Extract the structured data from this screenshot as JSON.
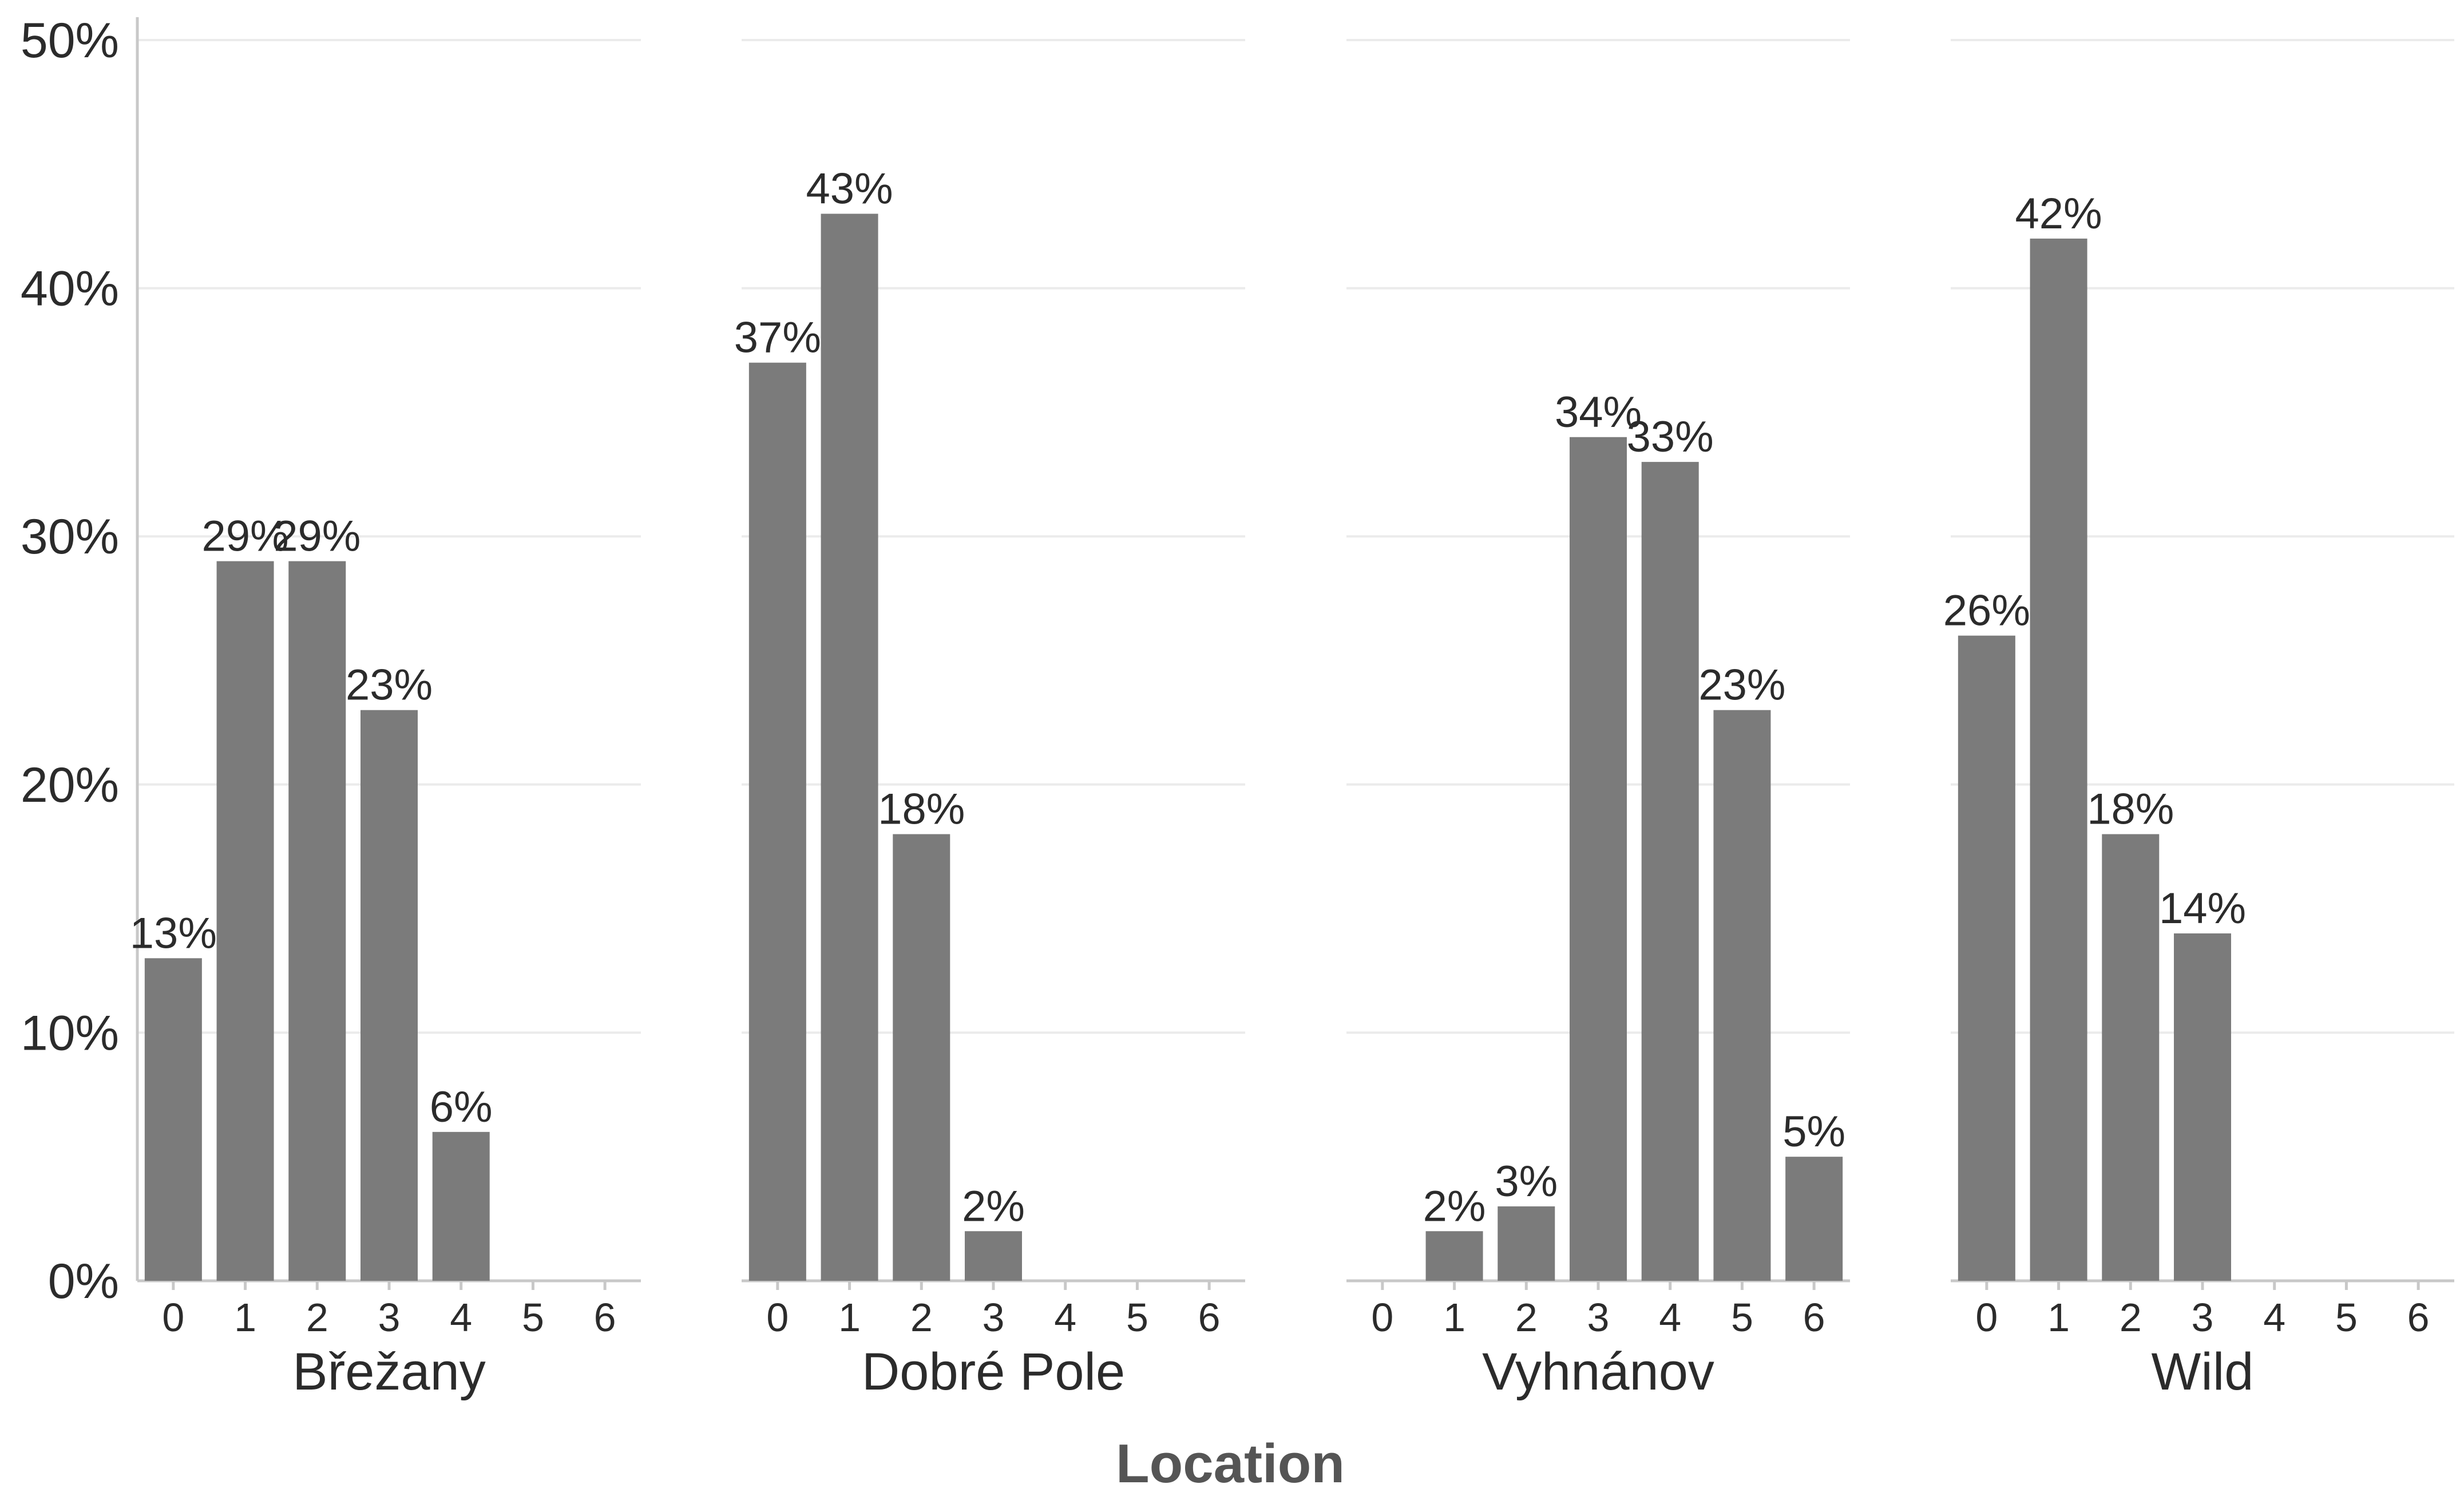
{
  "chart_data": {
    "type": "bar",
    "xlabel": "Location",
    "ylabel": "",
    "ylim": [
      0,
      50
    ],
    "y_ticks": [
      "0%",
      "10%",
      "20%",
      "30%",
      "40%",
      "50%"
    ],
    "grid": "horizontal",
    "bar_color": "#7b7b7b",
    "categories": [
      "0",
      "1",
      "2",
      "3",
      "4",
      "5",
      "6"
    ],
    "facets": [
      {
        "name": "Břežany",
        "values": [
          13,
          29,
          29,
          23,
          6,
          0,
          0
        ],
        "labels": [
          "13%",
          "29%",
          "29%",
          "23%",
          "6%",
          null,
          null
        ]
      },
      {
        "name": "Dobré Pole",
        "values": [
          37,
          43,
          18,
          2,
          0,
          0,
          0
        ],
        "labels": [
          "37%",
          "43%",
          "18%",
          "2%",
          null,
          null,
          null
        ]
      },
      {
        "name": "Vyhnánov",
        "values": [
          0,
          2,
          3,
          34,
          33,
          23,
          5
        ],
        "labels": [
          null,
          "2%",
          "3%",
          "34%",
          "33%",
          "23%",
          "5%"
        ]
      },
      {
        "name": "Wild",
        "values": [
          26,
          42,
          18,
          14,
          0,
          0,
          0
        ],
        "labels": [
          "26%",
          "42%",
          "18%",
          "14%",
          null,
          null,
          null
        ]
      }
    ]
  }
}
